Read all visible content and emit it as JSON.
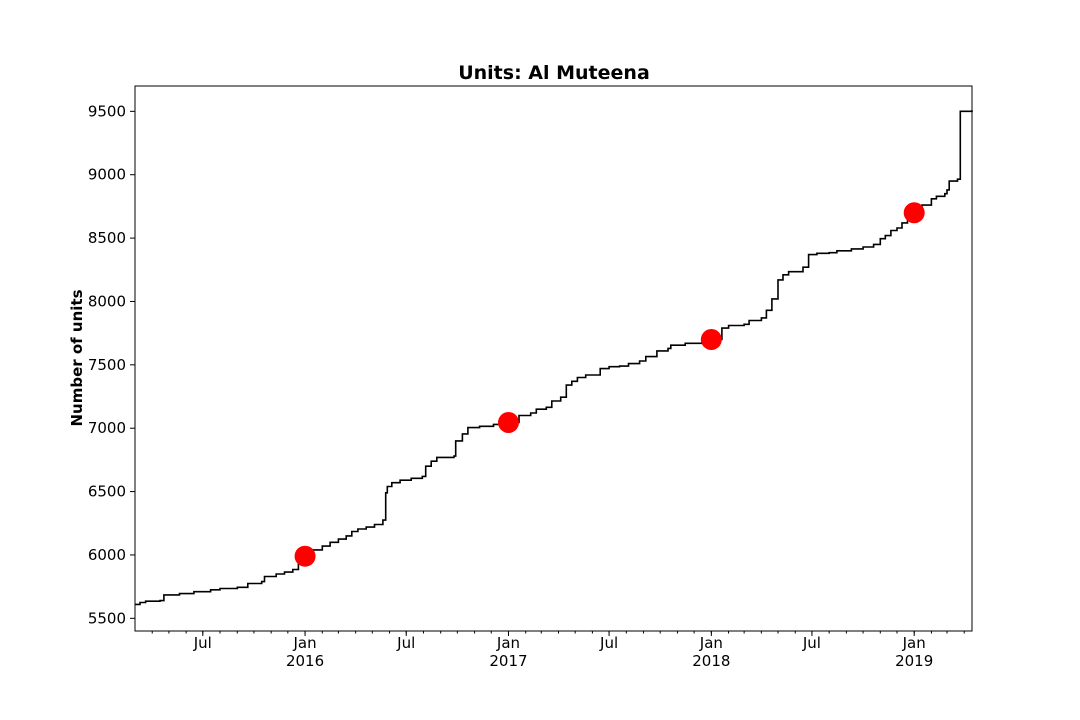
{
  "chart_data": {
    "type": "line",
    "title": "Units: Al Muteena",
    "xlabel": "",
    "ylabel": "Number of units",
    "xlim": [
      "2015-03-01",
      "2019-04-15"
    ],
    "ylim": [
      5400,
      9700
    ],
    "yticks": [
      5500,
      6000,
      6500,
      7000,
      7500,
      8000,
      8500,
      9000,
      9500
    ],
    "xticks": [
      {
        "date": "2015-07-01",
        "label": "Jul",
        "sublabel": ""
      },
      {
        "date": "2016-01-01",
        "label": "Jan",
        "sublabel": "2016"
      },
      {
        "date": "2016-07-01",
        "label": "Jul",
        "sublabel": ""
      },
      {
        "date": "2017-01-01",
        "label": "Jan",
        "sublabel": "2017"
      },
      {
        "date": "2017-07-01",
        "label": "Jul",
        "sublabel": ""
      },
      {
        "date": "2018-01-01",
        "label": "Jan",
        "sublabel": "2018"
      },
      {
        "date": "2018-07-01",
        "label": "Jul",
        "sublabel": ""
      },
      {
        "date": "2019-01-01",
        "label": "Jan",
        "sublabel": "2019"
      }
    ],
    "line_color": "#000000",
    "marker_color": "#ff0000",
    "grid": false,
    "series": [
      {
        "points": [
          [
            "2015-03-01",
            5610
          ],
          [
            "2015-03-10",
            5625
          ],
          [
            "2015-03-20",
            5635
          ],
          [
            "2015-04-15",
            5640
          ],
          [
            "2015-04-22",
            5685
          ],
          [
            "2015-05-20",
            5695
          ],
          [
            "2015-06-15",
            5710
          ],
          [
            "2015-07-15",
            5725
          ],
          [
            "2015-08-01",
            5735
          ],
          [
            "2015-09-01",
            5745
          ],
          [
            "2015-09-20",
            5775
          ],
          [
            "2015-10-15",
            5790
          ],
          [
            "2015-10-20",
            5830
          ],
          [
            "2015-11-10",
            5850
          ],
          [
            "2015-11-25",
            5865
          ],
          [
            "2015-12-10",
            5885
          ],
          [
            "2015-12-20",
            5930
          ],
          [
            "2016-01-01",
            5990
          ],
          [
            "2016-01-15",
            6040
          ],
          [
            "2016-02-01",
            6070
          ],
          [
            "2016-02-15",
            6100
          ],
          [
            "2016-03-01",
            6125
          ],
          [
            "2016-03-15",
            6150
          ],
          [
            "2016-03-25",
            6185
          ],
          [
            "2016-04-05",
            6205
          ],
          [
            "2016-04-20",
            6220
          ],
          [
            "2016-05-05",
            6240
          ],
          [
            "2016-05-20",
            6275
          ],
          [
            "2016-05-25",
            6490
          ],
          [
            "2016-05-28",
            6540
          ],
          [
            "2016-06-05",
            6570
          ],
          [
            "2016-06-20",
            6590
          ],
          [
            "2016-07-10",
            6605
          ],
          [
            "2016-07-30",
            6620
          ],
          [
            "2016-08-05",
            6700
          ],
          [
            "2016-08-15",
            6740
          ],
          [
            "2016-08-25",
            6770
          ],
          [
            "2016-09-25",
            6780
          ],
          [
            "2016-09-28",
            6900
          ],
          [
            "2016-10-10",
            6955
          ],
          [
            "2016-10-20",
            7005
          ],
          [
            "2016-11-10",
            7015
          ],
          [
            "2016-12-05",
            7030
          ],
          [
            "2017-01-01",
            7045
          ],
          [
            "2017-01-20",
            7100
          ],
          [
            "2017-02-10",
            7120
          ],
          [
            "2017-02-20",
            7150
          ],
          [
            "2017-03-10",
            7165
          ],
          [
            "2017-03-20",
            7215
          ],
          [
            "2017-04-05",
            7245
          ],
          [
            "2017-04-15",
            7340
          ],
          [
            "2017-04-25",
            7370
          ],
          [
            "2017-05-05",
            7400
          ],
          [
            "2017-05-20",
            7420
          ],
          [
            "2017-06-15",
            7470
          ],
          [
            "2017-07-01",
            7485
          ],
          [
            "2017-07-20",
            7490
          ],
          [
            "2017-08-05",
            7510
          ],
          [
            "2017-08-25",
            7530
          ],
          [
            "2017-09-05",
            7565
          ],
          [
            "2017-09-25",
            7610
          ],
          [
            "2017-10-15",
            7630
          ],
          [
            "2017-10-20",
            7655
          ],
          [
            "2017-11-15",
            7670
          ],
          [
            "2017-12-15",
            7685
          ],
          [
            "2018-01-01",
            7700
          ],
          [
            "2018-01-20",
            7790
          ],
          [
            "2018-02-01",
            7810
          ],
          [
            "2018-03-01",
            7820
          ],
          [
            "2018-03-10",
            7850
          ],
          [
            "2018-04-01",
            7870
          ],
          [
            "2018-04-10",
            7930
          ],
          [
            "2018-04-20",
            8020
          ],
          [
            "2018-05-01",
            8170
          ],
          [
            "2018-05-10",
            8210
          ],
          [
            "2018-05-20",
            8235
          ],
          [
            "2018-06-15",
            8270
          ],
          [
            "2018-06-25",
            8370
          ],
          [
            "2018-07-10",
            8380
          ],
          [
            "2018-08-01",
            8385
          ],
          [
            "2018-08-15",
            8400
          ],
          [
            "2018-09-10",
            8415
          ],
          [
            "2018-10-01",
            8430
          ],
          [
            "2018-10-20",
            8450
          ],
          [
            "2018-11-01",
            8495
          ],
          [
            "2018-11-10",
            8520
          ],
          [
            "2018-11-20",
            8560
          ],
          [
            "2018-12-01",
            8580
          ],
          [
            "2018-12-10",
            8620
          ],
          [
            "2018-12-20",
            8650
          ],
          [
            "2019-01-01",
            8700
          ],
          [
            "2019-01-15",
            8760
          ],
          [
            "2019-02-01",
            8810
          ],
          [
            "2019-02-10",
            8830
          ],
          [
            "2019-02-25",
            8850
          ],
          [
            "2019-03-01",
            8880
          ],
          [
            "2019-03-05",
            8950
          ],
          [
            "2019-03-20",
            8965
          ],
          [
            "2019-03-25",
            9500
          ],
          [
            "2019-04-15",
            9510
          ]
        ]
      }
    ],
    "markers": [
      [
        "2016-01-01",
        5990
      ],
      [
        "2017-01-01",
        7045
      ],
      [
        "2018-01-01",
        7700
      ],
      [
        "2019-01-01",
        8700
      ]
    ]
  }
}
